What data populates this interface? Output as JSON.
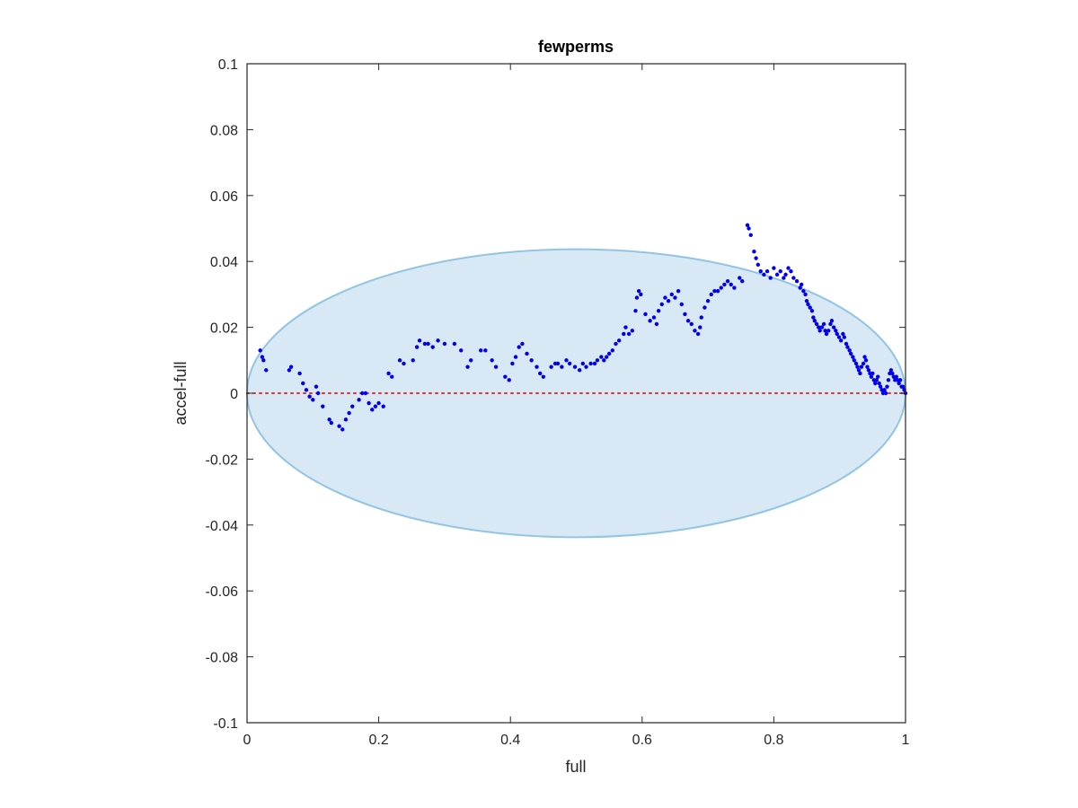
{
  "chart_data": {
    "type": "scatter",
    "title": "fewperms",
    "xlabel": "full",
    "ylabel": "accel-full",
    "xlim": [
      0,
      1
    ],
    "ylim": [
      -0.1,
      0.1
    ],
    "xticks": [
      {
        "value": 0,
        "label": "0"
      },
      {
        "value": 0.2,
        "label": "0.2"
      },
      {
        "value": 0.4,
        "label": "0.4"
      },
      {
        "value": 0.6,
        "label": "0.6"
      },
      {
        "value": 0.8,
        "label": "0.8"
      },
      {
        "value": 1,
        "label": "1"
      }
    ],
    "yticks": [
      {
        "value": -0.1,
        "label": "-0.1"
      },
      {
        "value": -0.08,
        "label": "-0.08"
      },
      {
        "value": -0.06,
        "label": "-0.06"
      },
      {
        "value": -0.04,
        "label": "-0.04"
      },
      {
        "value": -0.02,
        "label": "-0.02"
      },
      {
        "value": 0,
        "label": "0"
      },
      {
        "value": 0.02,
        "label": "0.02"
      },
      {
        "value": 0.04,
        "label": "0.04"
      },
      {
        "value": 0.06,
        "label": "0.06"
      },
      {
        "value": 0.08,
        "label": "0.08"
      },
      {
        "value": 0.1,
        "label": "0.1"
      }
    ],
    "grid": false,
    "ellipse": {
      "cx": 0.5,
      "cy": 0,
      "rx": 0.5,
      "ry": 0.0437,
      "fill": "#d8e8f4",
      "stroke": "#92c5e3"
    },
    "reference_line": {
      "y": 0,
      "color": "#e03030",
      "style": "dotted"
    },
    "point_color": "#0000ee",
    "points": [
      [
        0.02,
        0.013
      ],
      [
        0.023,
        0.011
      ],
      [
        0.025,
        0.01
      ],
      [
        0.029,
        0.007
      ],
      [
        0.064,
        0.007
      ],
      [
        0.067,
        0.008
      ],
      [
        0.08,
        0.006
      ],
      [
        0.085,
        0.003
      ],
      [
        0.09,
        0.001
      ],
      [
        0.095,
        -0.001
      ],
      [
        0.1,
        -0.002
      ],
      [
        0.105,
        0.002
      ],
      [
        0.108,
        0.0
      ],
      [
        0.115,
        -0.004
      ],
      [
        0.125,
        -0.008
      ],
      [
        0.128,
        -0.009
      ],
      [
        0.14,
        -0.01
      ],
      [
        0.145,
        -0.011
      ],
      [
        0.15,
        -0.008
      ],
      [
        0.155,
        -0.006
      ],
      [
        0.16,
        -0.004
      ],
      [
        0.17,
        -0.002
      ],
      [
        0.175,
        0.0
      ],
      [
        0.18,
        0.0
      ],
      [
        0.185,
        -0.003
      ],
      [
        0.19,
        -0.005
      ],
      [
        0.195,
        -0.004
      ],
      [
        0.2,
        -0.003
      ],
      [
        0.207,
        -0.004
      ],
      [
        0.215,
        0.006
      ],
      [
        0.22,
        0.005
      ],
      [
        0.232,
        0.01
      ],
      [
        0.238,
        0.009
      ],
      [
        0.252,
        0.01
      ],
      [
        0.258,
        0.014
      ],
      [
        0.262,
        0.016
      ],
      [
        0.27,
        0.015
      ],
      [
        0.275,
        0.015
      ],
      [
        0.282,
        0.014
      ],
      [
        0.29,
        0.016
      ],
      [
        0.3,
        0.015
      ],
      [
        0.315,
        0.015
      ],
      [
        0.325,
        0.013
      ],
      [
        0.335,
        0.008
      ],
      [
        0.34,
        0.01
      ],
      [
        0.355,
        0.013
      ],
      [
        0.362,
        0.013
      ],
      [
        0.372,
        0.01
      ],
      [
        0.378,
        0.008
      ],
      [
        0.392,
        0.005
      ],
      [
        0.398,
        0.004
      ],
      [
        0.403,
        0.009
      ],
      [
        0.408,
        0.011
      ],
      [
        0.413,
        0.014
      ],
      [
        0.418,
        0.015
      ],
      [
        0.425,
        0.012
      ],
      [
        0.432,
        0.01
      ],
      [
        0.44,
        0.008
      ],
      [
        0.445,
        0.006
      ],
      [
        0.45,
        0.005
      ],
      [
        0.462,
        0.008
      ],
      [
        0.468,
        0.009
      ],
      [
        0.472,
        0.009
      ],
      [
        0.478,
        0.008
      ],
      [
        0.485,
        0.01
      ],
      [
        0.49,
        0.009
      ],
      [
        0.498,
        0.008
      ],
      [
        0.505,
        0.007
      ],
      [
        0.51,
        0.009
      ],
      [
        0.515,
        0.008
      ],
      [
        0.522,
        0.009
      ],
      [
        0.528,
        0.009
      ],
      [
        0.532,
        0.01
      ],
      [
        0.538,
        0.011
      ],
      [
        0.542,
        0.01
      ],
      [
        0.546,
        0.011
      ],
      [
        0.55,
        0.012
      ],
      [
        0.555,
        0.013
      ],
      [
        0.56,
        0.015
      ],
      [
        0.565,
        0.016
      ],
      [
        0.572,
        0.018
      ],
      [
        0.575,
        0.02
      ],
      [
        0.58,
        0.018
      ],
      [
        0.585,
        0.019
      ],
      [
        0.59,
        0.025
      ],
      [
        0.592,
        0.029
      ],
      [
        0.595,
        0.031
      ],
      [
        0.598,
        0.03
      ],
      [
        0.605,
        0.024
      ],
      [
        0.612,
        0.022
      ],
      [
        0.618,
        0.023
      ],
      [
        0.622,
        0.021
      ],
      [
        0.625,
        0.025
      ],
      [
        0.63,
        0.027
      ],
      [
        0.635,
        0.029
      ],
      [
        0.64,
        0.028
      ],
      [
        0.645,
        0.03
      ],
      [
        0.65,
        0.029
      ],
      [
        0.655,
        0.031
      ],
      [
        0.66,
        0.027
      ],
      [
        0.665,
        0.024
      ],
      [
        0.67,
        0.022
      ],
      [
        0.675,
        0.021
      ],
      [
        0.68,
        0.019
      ],
      [
        0.685,
        0.018
      ],
      [
        0.688,
        0.02
      ],
      [
        0.69,
        0.023
      ],
      [
        0.695,
        0.026
      ],
      [
        0.7,
        0.028
      ],
      [
        0.705,
        0.03
      ],
      [
        0.71,
        0.031
      ],
      [
        0.715,
        0.031
      ],
      [
        0.72,
        0.032
      ],
      [
        0.725,
        0.033
      ],
      [
        0.73,
        0.034
      ],
      [
        0.735,
        0.033
      ],
      [
        0.74,
        0.032
      ],
      [
        0.748,
        0.035
      ],
      [
        0.752,
        0.034
      ],
      [
        0.76,
        0.051
      ],
      [
        0.762,
        0.05
      ],
      [
        0.765,
        0.048
      ],
      [
        0.77,
        0.043
      ],
      [
        0.773,
        0.041
      ],
      [
        0.776,
        0.039
      ],
      [
        0.78,
        0.037
      ],
      [
        0.785,
        0.036
      ],
      [
        0.79,
        0.037
      ],
      [
        0.795,
        0.035
      ],
      [
        0.8,
        0.038
      ],
      [
        0.805,
        0.036
      ],
      [
        0.81,
        0.037
      ],
      [
        0.815,
        0.035
      ],
      [
        0.818,
        0.036
      ],
      [
        0.822,
        0.038
      ],
      [
        0.826,
        0.037
      ],
      [
        0.83,
        0.035
      ],
      [
        0.835,
        0.034
      ],
      [
        0.84,
        0.032
      ],
      [
        0.842,
        0.033
      ],
      [
        0.845,
        0.031
      ],
      [
        0.848,
        0.03
      ],
      [
        0.85,
        0.028
      ],
      [
        0.852,
        0.027
      ],
      [
        0.855,
        0.026
      ],
      [
        0.858,
        0.025
      ],
      [
        0.86,
        0.023
      ],
      [
        0.862,
        0.022
      ],
      [
        0.865,
        0.021
      ],
      [
        0.868,
        0.02
      ],
      [
        0.87,
        0.019
      ],
      [
        0.873,
        0.02
      ],
      [
        0.876,
        0.021
      ],
      [
        0.878,
        0.019
      ],
      [
        0.88,
        0.018
      ],
      [
        0.883,
        0.019
      ],
      [
        0.886,
        0.021
      ],
      [
        0.888,
        0.022
      ],
      [
        0.891,
        0.02
      ],
      [
        0.894,
        0.019
      ],
      [
        0.896,
        0.018
      ],
      [
        0.899,
        0.017
      ],
      [
        0.902,
        0.016
      ],
      [
        0.905,
        0.018
      ],
      [
        0.907,
        0.017
      ],
      [
        0.91,
        0.015
      ],
      [
        0.912,
        0.014
      ],
      [
        0.915,
        0.013
      ],
      [
        0.917,
        0.012
      ],
      [
        0.92,
        0.011
      ],
      [
        0.922,
        0.01
      ],
      [
        0.925,
        0.009
      ],
      [
        0.927,
        0.008
      ],
      [
        0.929,
        0.007
      ],
      [
        0.931,
        0.006
      ],
      [
        0.933,
        0.008
      ],
      [
        0.936,
        0.009
      ],
      [
        0.938,
        0.011
      ],
      [
        0.94,
        0.01
      ],
      [
        0.942,
        0.008
      ],
      [
        0.944,
        0.007
      ],
      [
        0.946,
        0.006
      ],
      [
        0.948,
        0.005
      ],
      [
        0.95,
        0.006
      ],
      [
        0.952,
        0.004
      ],
      [
        0.954,
        0.003
      ],
      [
        0.956,
        0.004
      ],
      [
        0.958,
        0.005
      ],
      [
        0.96,
        0.003
      ],
      [
        0.962,
        0.002
      ],
      [
        0.964,
        0.001
      ],
      [
        0.966,
        0.0
      ],
      [
        0.968,
        0.001
      ],
      [
        0.97,
        0.0
      ],
      [
        0.972,
        0.002
      ],
      [
        0.974,
        0.004
      ],
      [
        0.976,
        0.006
      ],
      [
        0.978,
        0.007
      ],
      [
        0.98,
        0.006
      ],
      [
        0.982,
        0.005
      ],
      [
        0.984,
        0.004
      ],
      [
        0.986,
        0.005
      ],
      [
        0.988,
        0.004
      ],
      [
        0.99,
        0.003
      ],
      [
        0.992,
        0.004
      ],
      [
        0.994,
        0.002
      ],
      [
        0.996,
        0.002
      ],
      [
        0.998,
        0.001
      ],
      [
        1.0,
        0.0
      ]
    ]
  }
}
